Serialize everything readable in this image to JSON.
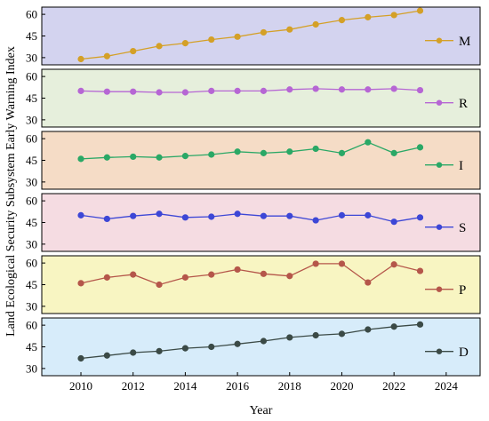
{
  "chart_data": {
    "type": "line",
    "ylabel": "Land Ecological Security Subsystem Early Warning Index",
    "xlabel": "Year",
    "xlim": [
      2008.5,
      2025.3
    ],
    "xticks": [
      2010,
      2012,
      2014,
      2016,
      2018,
      2020,
      2022,
      2024
    ],
    "ylim": [
      25,
      65
    ],
    "yticks": [
      30,
      45,
      60
    ],
    "x": [
      2010,
      2011,
      2012,
      2013,
      2014,
      2015,
      2016,
      2017,
      2018,
      2019,
      2020,
      2021,
      2022,
      2023
    ],
    "legend_position": "right",
    "series": [
      {
        "name": "M",
        "color": "#d4a027",
        "bg": "#d3d3ef",
        "values": [
          29,
          31,
          34.5,
          38,
          40,
          42.5,
          44.5,
          47.5,
          49.5,
          53,
          56,
          58,
          59.5,
          62.5
        ]
      },
      {
        "name": "R",
        "color": "#b666d4",
        "bg": "#e6efdc",
        "values": [
          50,
          49.5,
          49.5,
          49,
          49,
          50,
          50,
          50,
          51,
          51.5,
          51,
          51,
          51.5,
          50.5
        ]
      },
      {
        "name": "I",
        "color": "#2aa866",
        "bg": "#f5dcc6",
        "values": [
          46,
          47,
          47.5,
          47,
          48,
          49,
          51,
          50,
          51,
          53,
          50,
          57.5,
          50,
          54
        ]
      },
      {
        "name": "S",
        "color": "#3d47d6",
        "bg": "#f5dce2",
        "values": [
          50,
          47.5,
          49.5,
          51,
          48.5,
          49,
          51,
          49.5,
          49.5,
          46.5,
          50,
          50,
          45.5,
          48.5
        ]
      },
      {
        "name": "P",
        "color": "#b5564a",
        "bg": "#f8f5c2",
        "values": [
          46,
          50,
          52,
          45,
          50,
          52,
          55.5,
          52.5,
          51,
          59.5,
          59.5,
          46.5,
          59,
          54.5
        ]
      },
      {
        "name": "D",
        "color": "#3b4a46",
        "bg": "#d7ecfa",
        "values": [
          37,
          39,
          41,
          42,
          44,
          45,
          47,
          49,
          51.5,
          53,
          54,
          57,
          59,
          60.5
        ]
      }
    ]
  }
}
